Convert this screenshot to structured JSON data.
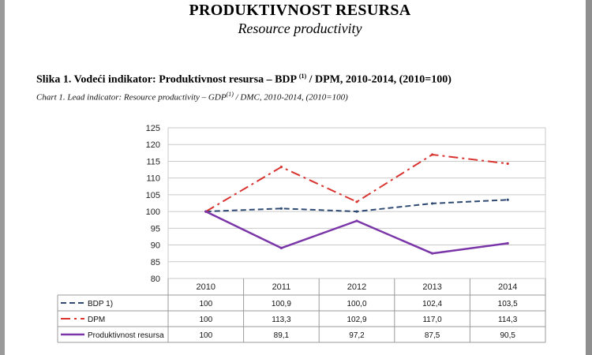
{
  "page": {
    "title": "PRODUKTIVNOST RESURSA",
    "subtitle": "Resource productivity"
  },
  "caption": {
    "bs_main": "Slika 1. Vodeći indikator: Produktivnost resursa – BDP ",
    "bs_sup": "(1)",
    "bs_rest": " / DPM, 2010-2014, (2010=100)",
    "en_main": "Chart 1. Lead indicator: Resource productivity – GDP",
    "en_sup": "(1)",
    "en_rest": " / DMC, 2010-2014, (2010=100)"
  },
  "chart_data": {
    "type": "line",
    "categories": [
      "2010",
      "2011",
      "2012",
      "2013",
      "2014"
    ],
    "ylim": [
      80,
      125
    ],
    "yticks": [
      "80",
      "85",
      "90",
      "95",
      "100",
      "105",
      "110",
      "115",
      "120",
      "125"
    ],
    "grid": true,
    "series": [
      {
        "key": "bdp",
        "name": "BDP 1)",
        "values": [
          100,
          100.9,
          100.0,
          102.4,
          103.5
        ],
        "labels": [
          "100",
          "100,9",
          "100,0",
          "102,4",
          "103,5"
        ],
        "color": "#2e4a73",
        "style": "dashed"
      },
      {
        "key": "dpm",
        "name": "DPM",
        "values": [
          100,
          113.3,
          102.9,
          117.0,
          114.3
        ],
        "labels": [
          "100",
          "113,3",
          "102,9",
          "117,0",
          "114,3"
        ],
        "color": "#d9332f",
        "style": "dashdot"
      },
      {
        "key": "pr",
        "name": "Produktivnost resursa",
        "values": [
          100,
          89.1,
          97.2,
          87.5,
          90.5
        ],
        "labels": [
          "100",
          "89,1",
          "97,2",
          "87,5",
          "90,5"
        ],
        "color": "#7a35a8",
        "style": "solid"
      }
    ]
  }
}
